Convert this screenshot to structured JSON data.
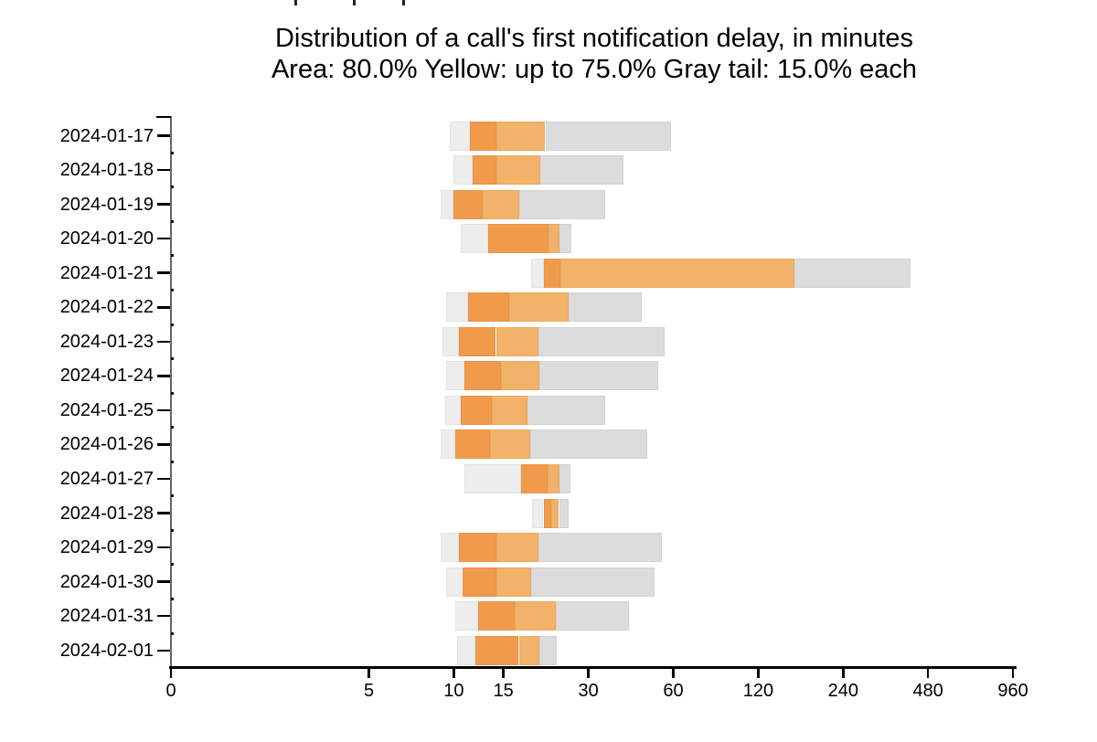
{
  "title": {
    "line1": "Distribution of a call's first notification delay, in minutes",
    "line2": "Area: 80.0% Yellow: up to 75.0% Gray tail: 15.0% each"
  },
  "chart_data": {
    "type": "bar",
    "subtype": "horizontal-percentile-distribution",
    "title": "Distribution of a call's first notification delay, in minutes",
    "subtitle": "Area: 80.0% Yellow: up to 75.0% Gray tail: 15.0% each",
    "unit": "minutes",
    "legend": {
      "area_coverage": "80.0%",
      "yellow_up_to": "75.0%",
      "gray_tail_each": "15.0%"
    },
    "x_axis": {
      "scale": "symlog-base2",
      "linear_threshold": 5,
      "ticks": [
        0,
        5,
        10,
        15,
        30,
        60,
        120,
        240,
        480,
        960
      ]
    },
    "y_axis": {
      "categories": [
        "2024-01-17",
        "2024-01-18",
        "2024-01-19",
        "2024-01-20",
        "2024-01-21",
        "2024-01-22",
        "2024-01-23",
        "2024-01-24",
        "2024-01-25",
        "2024-01-26",
        "2024-01-27",
        "2024-01-28",
        "2024-01-29",
        "2024-01-30",
        "2024-01-31",
        "2024-02-01"
      ]
    },
    "segment_bounds": [
      "p10",
      "p25",
      "p50",
      "p75",
      "p90"
    ],
    "segment_meaning": {
      "p10_p25": "gray left tail 15%",
      "p25_p50": "dark orange 25th-50th percentile",
      "p50_p75": "light orange 50th-75th percentile",
      "p75_p90": "gray right tail 15%"
    },
    "rows": [
      {
        "date": "2024-01-17",
        "p10": 9.7,
        "p25": 11.4,
        "p50": 14.2,
        "p75": 21.1,
        "p90": 58.7
      },
      {
        "date": "2024-01-18",
        "p10": 10.0,
        "p25": 11.7,
        "p50": 14.2,
        "p75": 20.3,
        "p90": 40.1
      },
      {
        "date": "2024-01-19",
        "p10": 9.0,
        "p25": 10.0,
        "p50": 12.7,
        "p75": 17.1,
        "p90": 34.3
      },
      {
        "date": "2024-01-20",
        "p10": 10.6,
        "p25": 13.2,
        "p50": 21.6,
        "p75": 23.7,
        "p90": 26.2
      },
      {
        "date": "2024-01-21",
        "p10": 18.8,
        "p25": 20.8,
        "p50": 23.9,
        "p75": 161,
        "p90": 416
      },
      {
        "date": "2024-01-22",
        "p10": 9.4,
        "p25": 11.2,
        "p50": 15.7,
        "p75": 25.6,
        "p90": 46.5
      },
      {
        "date": "2024-01-23",
        "p10": 9.1,
        "p25": 10.4,
        "p50": 14.1,
        "p75": 20.0,
        "p90": 56.1
      },
      {
        "date": "2024-01-24",
        "p10": 9.4,
        "p25": 10.9,
        "p50": 14.7,
        "p75": 20.1,
        "p90": 53.1
      },
      {
        "date": "2024-01-25",
        "p10": 9.3,
        "p25": 10.6,
        "p50": 13.6,
        "p75": 18.2,
        "p90": 34.3
      },
      {
        "date": "2024-01-26",
        "p10": 9.0,
        "p25": 10.1,
        "p50": 13.4,
        "p75": 18.7,
        "p90": 48.6
      },
      {
        "date": "2024-01-27",
        "p10": 10.9,
        "p25": 17.3,
        "p50": 21.5,
        "p75": 23.6,
        "p90": 25.9
      },
      {
        "date": "2024-01-28",
        "p10": 18.9,
        "p25": 20.8,
        "p50": 22.2,
        "p75": 23.6,
        "p90": 25.6
      },
      {
        "date": "2024-01-29",
        "p10": 9.0,
        "p25": 10.4,
        "p50": 14.2,
        "p75": 19.9,
        "p90": 54.5
      },
      {
        "date": "2024-01-30",
        "p10": 9.4,
        "p25": 10.7,
        "p50": 14.2,
        "p75": 18.8,
        "p90": 51.5
      },
      {
        "date": "2024-01-31",
        "p10": 10.1,
        "p25": 12.2,
        "p50": 16.4,
        "p75": 23.0,
        "p90": 41.9
      },
      {
        "date": "2024-02-01",
        "p10": 10.3,
        "p25": 11.9,
        "p50": 17.0,
        "p75": 20.1,
        "p90": 23.1
      }
    ],
    "colors": {
      "gray_left_tail": "#EDEDED",
      "orange_dark": "#F09B4C",
      "orange_light": "#F2B269",
      "gray_right_tail": "#DCDCDC",
      "axis": "#000000"
    },
    "layout_hints": {
      "grid": false,
      "legend_position": "in-subtitle",
      "bar_orientation": "horizontal"
    }
  }
}
